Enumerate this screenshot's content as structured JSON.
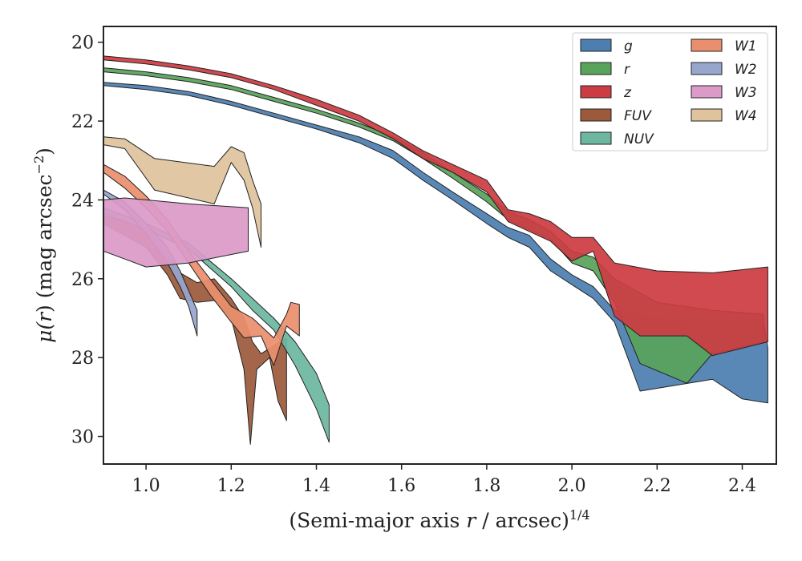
{
  "chart_data": {
    "type": "area",
    "title": "",
    "xlabel": {
      "prefix": "(Semi-major axis ",
      "var": "r",
      "mid": " / arcsec)",
      "sup": "1/4"
    },
    "ylabel": {
      "prefix": "μ(",
      "var": "r",
      "mid": ") (mag arcsec",
      "sup": "−2",
      "suffix": ")"
    },
    "xlim": [
      0.9,
      2.48
    ],
    "ylim": [
      30.7,
      19.6
    ],
    "y_inverted": true,
    "xticks": [
      1.0,
      1.2,
      1.4,
      1.6,
      1.8,
      2.0,
      2.2,
      2.4
    ],
    "xtick_labels": [
      "1.0",
      "1.2",
      "1.4",
      "1.6",
      "1.8",
      "2.0",
      "2.2",
      "2.4"
    ],
    "yticks": [
      20,
      22,
      24,
      26,
      28,
      30
    ],
    "ytick_labels": [
      "20",
      "22",
      "24",
      "26",
      "28",
      "30"
    ],
    "grid": false,
    "legend": {
      "placement": "top-right",
      "columns": 2
    },
    "series": [
      {
        "name": "g",
        "color": "#4c7fb0",
        "upper": [
          [
            0.9,
            21.02
          ],
          [
            1.0,
            21.1
          ],
          [
            1.1,
            21.25
          ],
          [
            1.2,
            21.5
          ],
          [
            1.3,
            21.8
          ],
          [
            1.4,
            22.1
          ],
          [
            1.5,
            22.4
          ],
          [
            1.58,
            22.75
          ],
          [
            1.65,
            23.3
          ],
          [
            1.72,
            23.8
          ],
          [
            1.8,
            24.35
          ],
          [
            1.85,
            24.7
          ],
          [
            1.9,
            24.9
          ],
          [
            1.95,
            25.5
          ],
          [
            2.0,
            25.9
          ],
          [
            2.05,
            26.2
          ],
          [
            2.1,
            26.8
          ],
          [
            2.2,
            27.0
          ],
          [
            2.33,
            27.1
          ],
          [
            2.45,
            27.1
          ]
        ],
        "lower": [
          [
            0.9,
            21.1
          ],
          [
            1.0,
            21.2
          ],
          [
            1.1,
            21.35
          ],
          [
            1.2,
            21.6
          ],
          [
            1.3,
            21.9
          ],
          [
            1.4,
            22.2
          ],
          [
            1.5,
            22.55
          ],
          [
            1.58,
            22.95
          ],
          [
            1.65,
            23.5
          ],
          [
            1.72,
            24.0
          ],
          [
            1.8,
            24.6
          ],
          [
            1.85,
            24.95
          ],
          [
            1.9,
            25.2
          ],
          [
            1.95,
            25.8
          ],
          [
            2.0,
            26.15
          ],
          [
            2.05,
            26.5
          ],
          [
            2.1,
            27.1
          ],
          [
            2.16,
            28.85
          ],
          [
            2.33,
            28.55
          ],
          [
            2.4,
            29.05
          ],
          [
            2.46,
            29.15
          ],
          [
            2.46,
            27.75
          ]
        ]
      },
      {
        "name": "r",
        "color": "#59a35b",
        "upper": [
          [
            0.9,
            20.65
          ],
          [
            1.0,
            20.75
          ],
          [
            1.1,
            20.9
          ],
          [
            1.2,
            21.1
          ],
          [
            1.3,
            21.4
          ],
          [
            1.4,
            21.7
          ],
          [
            1.5,
            22.05
          ],
          [
            1.58,
            22.4
          ],
          [
            1.65,
            22.8
          ],
          [
            1.72,
            23.3
          ],
          [
            1.8,
            23.85
          ],
          [
            1.85,
            24.3
          ],
          [
            1.9,
            24.5
          ],
          [
            1.95,
            24.8
          ],
          [
            2.0,
            25.3
          ],
          [
            2.05,
            25.45
          ],
          [
            2.1,
            26.0
          ],
          [
            2.2,
            26.6
          ],
          [
            2.33,
            26.8
          ],
          [
            2.45,
            26.9
          ]
        ],
        "lower": [
          [
            0.9,
            20.75
          ],
          [
            1.0,
            20.85
          ],
          [
            1.1,
            21.0
          ],
          [
            1.2,
            21.2
          ],
          [
            1.3,
            21.5
          ],
          [
            1.4,
            21.8
          ],
          [
            1.5,
            22.15
          ],
          [
            1.58,
            22.5
          ],
          [
            1.65,
            22.95
          ],
          [
            1.72,
            23.45
          ],
          [
            1.8,
            24.05
          ],
          [
            1.85,
            24.5
          ],
          [
            1.9,
            24.75
          ],
          [
            1.95,
            25.0
          ],
          [
            2.0,
            25.6
          ],
          [
            2.05,
            25.8
          ],
          [
            2.1,
            26.6
          ],
          [
            2.16,
            28.15
          ],
          [
            2.27,
            28.65
          ],
          [
            2.33,
            27.9
          ],
          [
            2.45,
            27.6
          ]
        ]
      },
      {
        "name": "z",
        "color": "#cc3c43",
        "upper": [
          [
            0.9,
            20.35
          ],
          [
            1.0,
            20.45
          ],
          [
            1.1,
            20.6
          ],
          [
            1.2,
            20.8
          ],
          [
            1.3,
            21.1
          ],
          [
            1.4,
            21.45
          ],
          [
            1.5,
            21.85
          ],
          [
            1.58,
            22.3
          ],
          [
            1.65,
            22.75
          ],
          [
            1.72,
            23.1
          ],
          [
            1.8,
            23.5
          ],
          [
            1.85,
            24.25
          ],
          [
            1.9,
            24.35
          ],
          [
            1.95,
            24.55
          ],
          [
            2.0,
            24.95
          ],
          [
            2.05,
            24.95
          ],
          [
            2.1,
            25.6
          ],
          [
            2.2,
            25.8
          ],
          [
            2.33,
            25.85
          ],
          [
            2.46,
            25.7
          ]
        ],
        "lower": [
          [
            0.9,
            20.45
          ],
          [
            1.0,
            20.55
          ],
          [
            1.1,
            20.7
          ],
          [
            1.2,
            20.9
          ],
          [
            1.3,
            21.2
          ],
          [
            1.4,
            21.6
          ],
          [
            1.5,
            22.0
          ],
          [
            1.58,
            22.45
          ],
          [
            1.65,
            22.95
          ],
          [
            1.72,
            23.3
          ],
          [
            1.8,
            23.8
          ],
          [
            1.85,
            24.55
          ],
          [
            1.9,
            24.8
          ],
          [
            1.95,
            25.05
          ],
          [
            2.0,
            25.55
          ],
          [
            2.05,
            25.3
          ],
          [
            2.1,
            26.95
          ],
          [
            2.16,
            27.45
          ],
          [
            2.27,
            27.45
          ],
          [
            2.33,
            27.95
          ],
          [
            2.46,
            27.6
          ]
        ]
      },
      {
        "name": "FUV",
        "color": "#9c5a3c",
        "upper": [
          [
            0.9,
            24.4
          ],
          [
            1.0,
            24.7
          ],
          [
            1.05,
            25.4
          ],
          [
            1.08,
            25.85
          ],
          [
            1.12,
            26.1
          ],
          [
            1.16,
            26.0
          ],
          [
            1.2,
            26.5
          ],
          [
            1.23,
            27.0
          ],
          [
            1.25,
            27.6
          ],
          [
            1.27,
            27.9
          ],
          [
            1.3,
            27.7
          ],
          [
            1.33,
            27.5
          ]
        ],
        "lower": [
          [
            0.9,
            24.6
          ],
          [
            1.0,
            25.2
          ],
          [
            1.05,
            25.9
          ],
          [
            1.08,
            26.5
          ],
          [
            1.12,
            26.6
          ],
          [
            1.16,
            26.55
          ],
          [
            1.2,
            27.0
          ],
          [
            1.23,
            28.3
          ],
          [
            1.245,
            30.2
          ],
          [
            1.26,
            28.3
          ],
          [
            1.29,
            28.0
          ],
          [
            1.31,
            29.1
          ],
          [
            1.33,
            29.6
          ]
        ]
      },
      {
        "name": "NUV",
        "color": "#6db7a0",
        "upper": [
          [
            0.9,
            24.2
          ],
          [
            1.0,
            24.6
          ],
          [
            1.1,
            25.1
          ],
          [
            1.2,
            26.0
          ],
          [
            1.25,
            26.5
          ],
          [
            1.3,
            27.0
          ],
          [
            1.35,
            27.6
          ],
          [
            1.4,
            28.4
          ],
          [
            1.43,
            29.2
          ]
        ],
        "lower": [
          [
            0.9,
            24.35
          ],
          [
            1.0,
            24.75
          ],
          [
            1.1,
            25.25
          ],
          [
            1.2,
            26.2
          ],
          [
            1.25,
            26.8
          ],
          [
            1.3,
            27.3
          ],
          [
            1.35,
            28.2
          ],
          [
            1.4,
            29.3
          ],
          [
            1.43,
            30.15
          ]
        ]
      },
      {
        "name": "W1",
        "color": "#ea8f6e",
        "upper": [
          [
            0.9,
            23.1
          ],
          [
            0.95,
            23.4
          ],
          [
            1.0,
            23.9
          ],
          [
            1.05,
            24.5
          ],
          [
            1.1,
            25.3
          ],
          [
            1.15,
            26.0
          ],
          [
            1.2,
            26.7
          ],
          [
            1.25,
            27.0
          ],
          [
            1.3,
            27.5
          ],
          [
            1.33,
            26.9
          ],
          [
            1.34,
            26.6
          ],
          [
            1.36,
            26.65
          ]
        ],
        "lower": [
          [
            0.9,
            23.3
          ],
          [
            0.95,
            23.7
          ],
          [
            1.0,
            24.2
          ],
          [
            1.05,
            24.8
          ],
          [
            1.1,
            25.6
          ],
          [
            1.15,
            26.4
          ],
          [
            1.2,
            27.1
          ],
          [
            1.23,
            27.5
          ],
          [
            1.27,
            27.45
          ],
          [
            1.3,
            28.2
          ],
          [
            1.33,
            27.2
          ],
          [
            1.36,
            27.45
          ]
        ]
      },
      {
        "name": "W2",
        "color": "#97a6cc",
        "upper": [
          [
            0.9,
            23.75
          ],
          [
            0.95,
            24.05
          ],
          [
            1.0,
            24.6
          ],
          [
            1.05,
            25.2
          ],
          [
            1.08,
            25.8
          ],
          [
            1.1,
            26.3
          ],
          [
            1.12,
            26.8
          ]
        ],
        "lower": [
          [
            0.9,
            23.85
          ],
          [
            0.95,
            24.25
          ],
          [
            1.0,
            24.85
          ],
          [
            1.05,
            25.6
          ],
          [
            1.08,
            26.2
          ],
          [
            1.1,
            26.7
          ],
          [
            1.12,
            27.45
          ]
        ]
      },
      {
        "name": "W3",
        "color": "#dc9ac8",
        "upper": [
          [
            0.9,
            24.0
          ],
          [
            0.95,
            23.95
          ],
          [
            1.0,
            24.0
          ],
          [
            1.1,
            24.1
          ],
          [
            1.24,
            24.2
          ]
        ],
        "lower": [
          [
            0.9,
            25.3
          ],
          [
            0.95,
            25.5
          ],
          [
            1.0,
            25.7
          ],
          [
            1.1,
            25.6
          ],
          [
            1.24,
            25.3
          ]
        ]
      },
      {
        "name": "W4",
        "color": "#dfc39d",
        "upper": [
          [
            0.9,
            22.4
          ],
          [
            0.95,
            22.45
          ],
          [
            1.02,
            22.95
          ],
          [
            1.16,
            23.15
          ],
          [
            1.2,
            22.65
          ],
          [
            1.23,
            22.8
          ],
          [
            1.25,
            23.5
          ],
          [
            1.27,
            24.1
          ]
        ],
        "lower": [
          [
            0.9,
            22.6
          ],
          [
            0.95,
            22.7
          ],
          [
            1.02,
            23.75
          ],
          [
            1.16,
            24.1
          ],
          [
            1.2,
            23.05
          ],
          [
            1.23,
            23.5
          ],
          [
            1.25,
            24.2
          ],
          [
            1.27,
            25.2
          ]
        ]
      }
    ]
  }
}
